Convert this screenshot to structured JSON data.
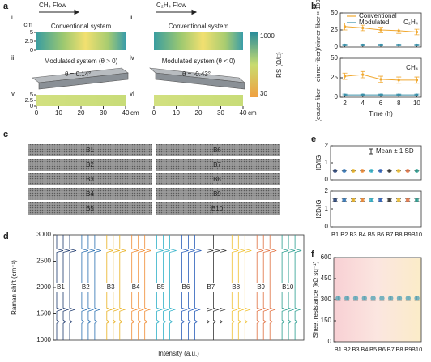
{
  "panel_labels": [
    "a",
    "b",
    "c",
    "d",
    "e",
    "f"
  ],
  "panel_a": {
    "roman": [
      "i",
      "ii",
      "iii",
      "iv",
      "v",
      "vi"
    ],
    "flows": [
      "CH₄ Flow",
      "C₂H₄ Flow"
    ],
    "conventional": [
      "Conventional system",
      "Conventional system"
    ],
    "modulated": [
      "Modulated system (θ > 0)",
      "Modulated system (θ < 0)"
    ],
    "angles": [
      "θ = 0.14°",
      "θ = -0.43°"
    ],
    "y_unit": "cm",
    "yticks": [
      5,
      2.5,
      0
    ],
    "xticks": [
      0,
      10,
      20,
      30,
      40
    ],
    "x_unit": "cm",
    "colorbar": {
      "label": "RS (Ω/□)",
      "ticks": [
        1000,
        30
      ]
    }
  },
  "panel_c": {
    "labels": [
      "B1",
      "B2",
      "B3",
      "B4",
      "B5",
      "B6",
      "B7",
      "B8",
      "B9",
      "B10"
    ]
  },
  "chart_data": [
    {
      "type": "line",
      "ylabel": "(σouter fiber − σinner fiber)/σinner fiber × 100 (%)",
      "annotation": "C₂H₄",
      "x": [
        2,
        4,
        6,
        8,
        10
      ],
      "xlim": [
        1.5,
        10.5
      ],
      "xticks": [
        2,
        4,
        6,
        8,
        10
      ],
      "ylim": [
        0,
        50
      ],
      "yticks": [
        0,
        25,
        50
      ],
      "series": [
        {
          "name": "Conventional",
          "color": "#f0a830",
          "values": [
            30,
            28,
            25,
            24,
            22
          ],
          "errors": [
            5,
            4,
            4,
            4,
            4
          ]
        },
        {
          "name": "Modulated",
          "color": "#3a8fa8",
          "values": [
            3,
            3,
            3,
            3,
            3
          ],
          "errors": [
            1,
            1,
            1,
            1,
            1
          ]
        }
      ]
    },
    {
      "type": "line",
      "xlabel": "Time (h)",
      "annotation": "CH₄",
      "x": [
        2,
        4,
        6,
        8,
        10
      ],
      "xlim": [
        1.5,
        10.5
      ],
      "xticks": [
        2,
        4,
        6,
        8,
        10
      ],
      "ylim": [
        0,
        50
      ],
      "yticks": [
        0,
        25,
        50
      ],
      "series": [
        {
          "color": "#f0a830",
          "values": [
            27,
            29,
            23,
            22,
            22
          ],
          "errors": [
            4,
            4,
            4,
            4,
            4
          ]
        },
        {
          "color": "#3a8fa8",
          "values": [
            3,
            3,
            3,
            3,
            3
          ],
          "errors": [
            1,
            1,
            1,
            1,
            1
          ]
        }
      ]
    },
    {
      "type": "spectra",
      "ylabel": "Raman shift (cm⁻¹)",
      "xlabel": "Intensity (a.u.)",
      "ylim": [
        1000,
        3000
      ],
      "yticks": [
        1000,
        1500,
        2000,
        2500,
        3000
      ],
      "peaks": [
        1350,
        1580,
        2700
      ],
      "categories": [
        "B1",
        "B2",
        "B3",
        "B4",
        "B5",
        "B6",
        "B7",
        "B8",
        "B9",
        "B10"
      ],
      "colors": [
        "#1f3a6e",
        "#2a6fb0",
        "#e8b020",
        "#f08a30",
        "#30b0c8",
        "#2b5fba",
        "#333333",
        "#f0c030",
        "#e07040",
        "#2a9d8f"
      ]
    },
    {
      "type": "dot",
      "ylabel": "ID/IG",
      "legend": "Mean ± 1 SD",
      "ylim": [
        0,
        2
      ],
      "yticks": [
        0,
        1,
        2
      ],
      "values": [
        0.5,
        0.5,
        0.5,
        0.5,
        0.5,
        0.5,
        0.5,
        0.5,
        0.5,
        0.5
      ],
      "errors": [
        0.05,
        0.05,
        0.05,
        0.05,
        0.05,
        0.05,
        0.05,
        0.05,
        0.05,
        0.05
      ],
      "colors": [
        "#1f3a6e",
        "#2a6fb0",
        "#e8b020",
        "#f08a30",
        "#30b0c8",
        "#2b5fba",
        "#333333",
        "#f0c030",
        "#e07040",
        "#2a9d8f"
      ]
    },
    {
      "type": "dot",
      "ylabel": "I2D/IG",
      "ylim": [
        0,
        2
      ],
      "yticks": [
        0,
        1,
        2
      ],
      "categories": [
        "B1",
        "B2",
        "B3",
        "B4",
        "B5",
        "B6",
        "B7",
        "B8",
        "B9",
        "B10"
      ],
      "values": [
        1.5,
        1.5,
        1.5,
        1.5,
        1.5,
        1.5,
        1.5,
        1.5,
        1.5,
        1.5
      ],
      "errors": [
        0.06,
        0.06,
        0.06,
        0.06,
        0.06,
        0.06,
        0.06,
        0.06,
        0.06,
        0.06
      ],
      "colors": [
        "#1f3a6e",
        "#2a6fb0",
        "#e8b020",
        "#f08a30",
        "#30b0c8",
        "#2b5fba",
        "#333333",
        "#f0c030",
        "#e07040",
        "#2a9d8f"
      ]
    },
    {
      "type": "dot",
      "ylabel": "Sheet resistance (kΩ sq⁻¹)",
      "ylim": [
        0,
        600
      ],
      "yticks": [
        0,
        150,
        300,
        450,
        600
      ],
      "categories": [
        "B1",
        "B2",
        "B3",
        "B4",
        "B5",
        "B6",
        "B7",
        "B8",
        "B9",
        "B10"
      ],
      "values": [
        310,
        310,
        310,
        310,
        310,
        310,
        310,
        310,
        310,
        310
      ],
      "errors": [
        15,
        15,
        15,
        15,
        15,
        15,
        15,
        15,
        15,
        15
      ],
      "color": "#5fa8b8"
    }
  ]
}
